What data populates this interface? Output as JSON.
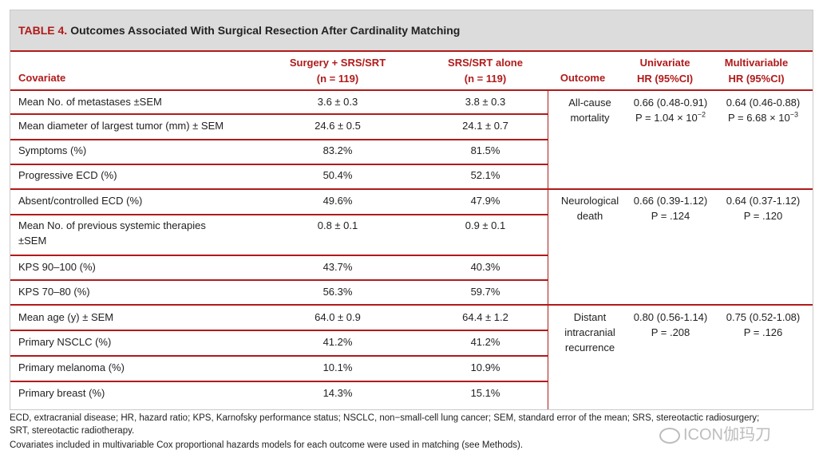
{
  "table": {
    "title_label": "TABLE 4.",
    "title_text": "Outcomes Associated With Surgical Resection After Cardinality Matching",
    "headers": {
      "covariate": "Covariate",
      "surgery_line1": "Surgery + SRS/SRT",
      "surgery_line2": "(n = 119)",
      "alone_line1": "SRS/SRT alone",
      "alone_line2": "(n = 119)",
      "outcome": "Outcome",
      "uni_line1": "Univariate",
      "uni_line2": "HR (95%CI)",
      "multi_line1": "Multivariable",
      "multi_line2": "HR (95%CI)"
    },
    "rows": [
      {
        "covariate": "Mean No. of metastases ±SEM",
        "surgery": "3.6 ± 0.3",
        "alone": "3.8 ± 0.3"
      },
      {
        "covariate": "Mean diameter of largest tumor (mm) ± SEM",
        "surgery": "24.6 ± 0.5",
        "alone": "24.1 ± 0.7"
      },
      {
        "covariate": "Symptoms (%)",
        "surgery": "83.2%",
        "alone": "81.5%"
      },
      {
        "covariate": "Progressive ECD (%)",
        "surgery": "50.4%",
        "alone": "52.1%"
      },
      {
        "covariate": "Absent/controlled ECD (%)",
        "surgery": "49.6%",
        "alone": "47.9%"
      },
      {
        "covariate": "Mean No. of previous systemic therapies",
        "covariate2": "±SEM",
        "surgery": "0.8 ± 0.1",
        "alone": "0.9 ± 0.1"
      },
      {
        "covariate": "KPS 90–100 (%)",
        "surgery": "43.7%",
        "alone": "40.3%"
      },
      {
        "covariate": "KPS 70–80 (%)",
        "surgery": "56.3%",
        "alone": "59.7%"
      },
      {
        "covariate": "Mean age (y) ± SEM",
        "surgery": "64.0 ± 0.9",
        "alone": "64.4 ± 1.2"
      },
      {
        "covariate": "Primary NSCLC (%)",
        "surgery": "41.2%",
        "alone": "41.2%"
      },
      {
        "covariate": "Primary melanoma (%)",
        "surgery": "10.1%",
        "alone": "10.9%"
      },
      {
        "covariate": "Primary breast (%)",
        "surgery": "14.3%",
        "alone": "15.1%"
      }
    ],
    "outcomes": [
      {
        "outcome_lines": [
          "All-cause",
          "mortality"
        ],
        "uni_hr": "0.66 (0.48-0.91)",
        "uni_p": "P = 1.04 × 10",
        "uni_exp": "−2",
        "multi_hr": "0.64 (0.46-0.88)",
        "multi_p": "P = 6.68 × 10",
        "multi_exp": "−3"
      },
      {
        "outcome_lines": [
          "Neurological",
          "death"
        ],
        "uni_hr": "0.66 (0.39-1.12)",
        "uni_p": "P = .124",
        "multi_hr": "0.64 (0.37-1.12)",
        "multi_p": "P = .120"
      },
      {
        "outcome_lines": [
          "Distant",
          "intracranial",
          "recurrence"
        ],
        "uni_hr": "0.80 (0.56-1.14)",
        "uni_p": "P = .208",
        "multi_hr": "0.75 (0.52-1.08)",
        "multi_p": "P = .126"
      }
    ]
  },
  "footnotes": {
    "line1": "ECD, extracranial disease; HR, hazard ratio; KPS, Karnofsky performance status; NSCLC, non−small-cell lung cancer; SEM, standard error of the mean; SRS, stereotactic radiosurgery;",
    "line2": "SRT, stereotactic radiotherapy.",
    "line3": "Covariates included in multivariable Cox proportional hazards models for each outcome were used in matching (see Methods)."
  },
  "watermark": {
    "text": "ICON伽玛刀",
    "icon": "wechat-icon"
  },
  "colors": {
    "accent": "#b11a1a",
    "title_bg": "#dcdcdc"
  }
}
